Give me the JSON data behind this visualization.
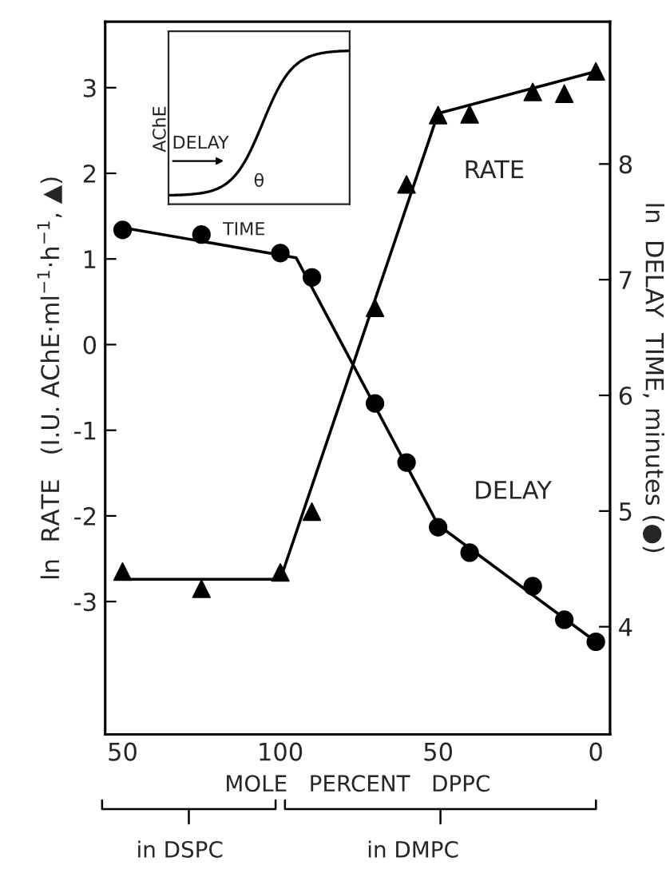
{
  "chart_data": {
    "type": "scatter",
    "xlabel": "MOLE   PERCENT   DPPC",
    "ylabel": "ln  RATE   (I.U. AChE·ml$^{−1}$·h$^{−1}$, ▲)",
    "y2label": "ln  DELAY  TIME, minutes (●)",
    "categories": [
      "50",
      null,
      null,
      null,
      null,
      null,
      null,
      null,
      null,
      null,
      "100",
      null,
      null,
      null,
      null,
      null,
      null,
      null,
      null,
      null,
      "50",
      null,
      null,
      null,
      null,
      null,
      null,
      null,
      null,
      null,
      "0"
    ],
    "ylim": [
      -4.55,
      3.77
    ],
    "yticks": [
      -3,
      -2,
      -1,
      0,
      1,
      2,
      3
    ],
    "y2lim": [
      3.07,
      9.23
    ],
    "y2ticks": [
      4,
      5,
      6,
      7,
      8
    ],
    "grid": false,
    "series": [
      {
        "marker": "triangle",
        "color": "#000000",
        "values": [
          -2.65,
          null,
          null,
          null,
          null,
          -2.85,
          null,
          null,
          null,
          null,
          -2.66,
          null,
          -1.95,
          null,
          null,
          null,
          0.43,
          null,
          1.87,
          null,
          2.68,
          null,
          2.69,
          null,
          null,
          null,
          2.95,
          null,
          2.93,
          null,
          3.19
        ]
      },
      {
        "marker": "circle",
        "color": "#000000",
        "axis": "y2",
        "values": [
          7.43,
          null,
          null,
          null,
          null,
          7.39,
          null,
          null,
          null,
          null,
          7.23,
          null,
          7.02,
          null,
          null,
          null,
          5.93,
          null,
          5.42,
          null,
          4.86,
          null,
          4.64,
          null,
          null,
          null,
          4.35,
          null,
          4.06,
          null,
          3.87
        ]
      },
      {
        "type": "line",
        "marker": "none",
        "line_style": "solid",
        "color": "#000000",
        "values": [
          -2.74,
          null,
          null,
          null,
          null,
          null,
          null,
          null,
          null,
          null,
          -2.74,
          null,
          null,
          null,
          null,
          null,
          null,
          null,
          null,
          null,
          2.7,
          null,
          null,
          null,
          null,
          null,
          null,
          null,
          null,
          null,
          3.19
        ]
      },
      {
        "type": "line",
        "marker": "none",
        "line_style": "solid",
        "color": "#000000",
        "axis": "y2",
        "values": [
          7.45,
          null,
          null,
          null,
          null,
          null,
          null,
          null,
          null,
          null,
          null,
          7.19,
          null,
          null,
          null,
          null,
          null,
          null,
          null,
          null,
          4.88,
          null,
          null,
          null,
          null,
          null,
          null,
          null,
          null,
          null,
          3.87
        ]
      }
    ],
    "annotations": [
      "in DSPC",
      "in DMPC",
      "AChE",
      "DELAY",
      "TIME",
      "θ",
      "RATE",
      "DELAY"
    ]
  }
}
